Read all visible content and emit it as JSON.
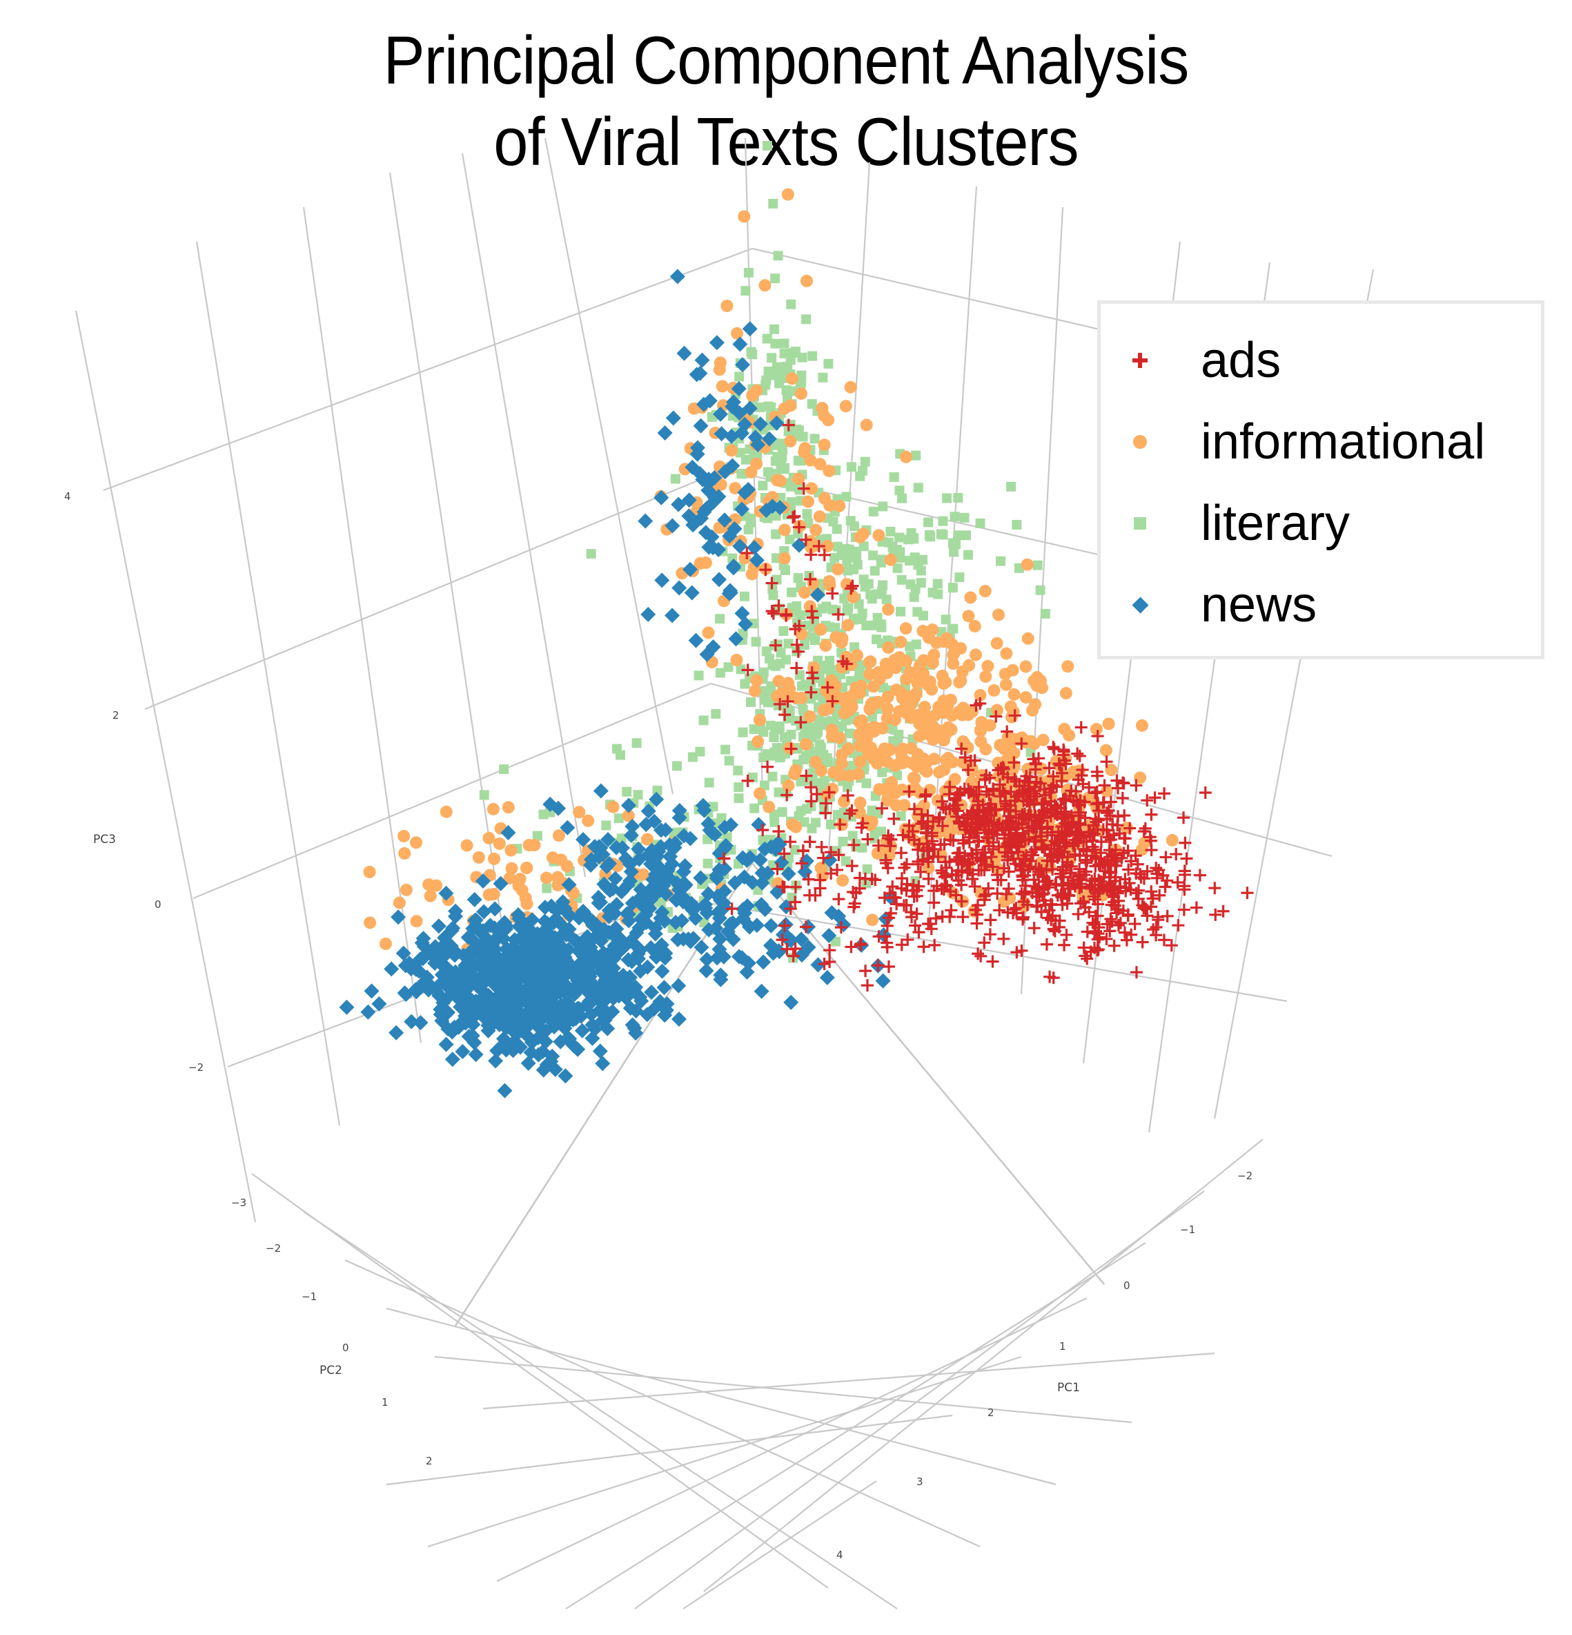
{
  "title": {
    "line1": "Principal Component Analysis",
    "line2": "of Viral Texts Clusters"
  },
  "axes": {
    "pc1": {
      "title": "PC1",
      "ticks": [
        "−2",
        "−1",
        "0",
        "1",
        "2",
        "3",
        "4"
      ]
    },
    "pc2": {
      "title": "PC2",
      "ticks": [
        "−3",
        "−2",
        "−1",
        "0",
        "1",
        "2"
      ]
    },
    "pc3": {
      "title": "PC3",
      "ticks": [
        "4",
        "2",
        "0",
        "−2"
      ]
    }
  },
  "legend": {
    "items": [
      {
        "label": "ads",
        "marker": "plus",
        "color": "#d62728"
      },
      {
        "label": "informational",
        "marker": "circle",
        "color": "#fdae61"
      },
      {
        "label": "literary",
        "marker": "square",
        "color": "#a6dba0"
      },
      {
        "label": "news",
        "marker": "diamond",
        "color": "#2b83ba"
      }
    ]
  },
  "chart_data": {
    "type": "scatter",
    "subtype": "3d-scatter",
    "title": "Principal Component Analysis of Viral Texts Clusters",
    "xlabel": "PC1",
    "ylabel": "PC2",
    "zlabel": "PC3",
    "x_ticks": [
      -2,
      -1,
      0,
      1,
      2,
      3,
      4
    ],
    "y_ticks": [
      -3,
      -2,
      -1,
      0,
      1,
      2
    ],
    "z_ticks": [
      -2,
      0,
      2,
      4
    ],
    "xlim": [
      -2.5,
      4.5
    ],
    "ylim": [
      -3.5,
      2.5
    ],
    "zlim": [
      -2.5,
      5
    ],
    "grid": true,
    "legend_position": "top-right",
    "series": [
      {
        "name": "ads",
        "marker": "cross",
        "color": "#d62728",
        "center": {
          "PC1": 2.2,
          "PC2": -2.0,
          "PC3": -0.6
        },
        "spread": "dense cluster toward positive PC1 / negative PC2",
        "approx_points": 900
      },
      {
        "name": "informational",
        "marker": "circle",
        "color": "#fdae61",
        "center": {
          "PC1": 0.8,
          "PC2": -1.2,
          "PC3": 0.4
        },
        "spread": "broad, overlapping ads and literary",
        "approx_points": 700
      },
      {
        "name": "literary",
        "marker": "square",
        "color": "#a6dba0",
        "center": {
          "PC1": 0.3,
          "PC2": -1.5,
          "PC3": 0.8
        },
        "spread": "tall plume extending to PC3 ≈ 4.5",
        "approx_points": 700
      },
      {
        "name": "news",
        "marker": "diamond",
        "color": "#2b83ba",
        "center": {
          "PC1": -0.5,
          "PC2": 0.6,
          "PC3": -0.8
        },
        "spread": "dense cluster toward positive PC2 / negative PC1",
        "approx_points": 900
      }
    ]
  }
}
